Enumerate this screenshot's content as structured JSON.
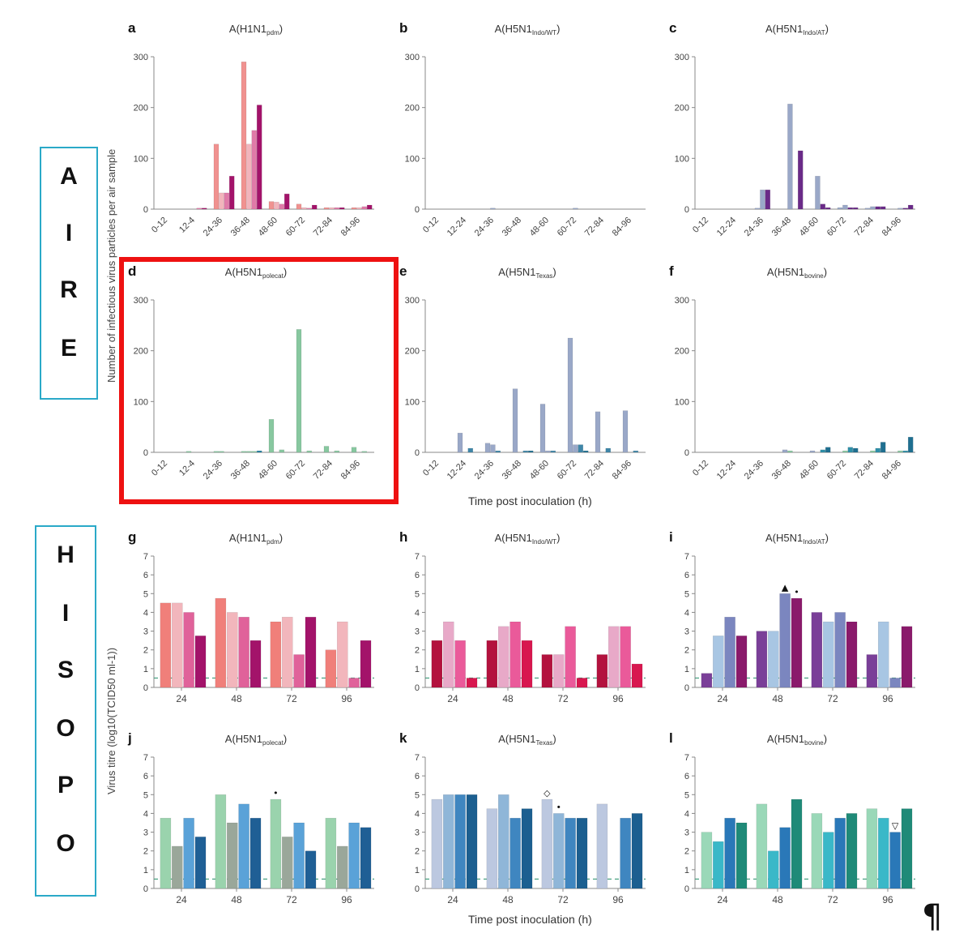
{
  "side_labels": {
    "aire": [
      "A",
      "I",
      "R",
      "E"
    ],
    "hisopo": [
      "H",
      "I",
      "S",
      "O",
      "P",
      "O"
    ]
  },
  "axis_titles": {
    "air_y": "Number of infectious virus particles per air sample",
    "swab_y": "Virus titre (log10(TCID50 ml-1))",
    "air_x": "Time post inoculation (h)",
    "swab_x": "Time post inoculation (h)"
  },
  "end_mark": "¶",
  "colors": {
    "highlight": "#ee1111",
    "side_box": "#2aa9c8",
    "h1n1": [
      "#f07f7a",
      "#f2b6bc",
      "#e0629a",
      "#a3136a"
    ],
    "indo_wt": [
      "#b3123e",
      "#e8a9c8",
      "#ea5a9a",
      "#d8174f"
    ],
    "indo_at": [
      "#7a3f98",
      "#a8c6e3",
      "#7b86bf",
      "#8a1a6b"
    ],
    "polecat": [
      "#9ad3ad",
      "#9aa79a",
      "#5aa2d8",
      "#1f5f95"
    ],
    "texas": [
      "#bcc8e0",
      "#8fb6d8",
      "#3f86c0",
      "#1c5f90"
    ],
    "bovine": [
      "#9ad8b8",
      "#3ab8c8",
      "#2a78b8",
      "#1f8a78"
    ],
    "air_h1n1": [
      "#f09290",
      "#f2b4bc",
      "#e07aa8",
      "#a3136a"
    ],
    "air_polecat": [
      "#88c8a0",
      "#88c8a0",
      "#88c8a0",
      "#1f7fa0"
    ],
    "air_texas": [
      "#9aa8c8",
      "#9aa8c8",
      "#3f86a8",
      "#1f6f90"
    ],
    "air_bovine": [
      "#9aa8c8",
      "#88c8a0",
      "#2f8fa8",
      "#1f6f90"
    ],
    "air_indo_at": [
      "#9aa8c8",
      "#9aa8c8",
      "#6a2a88",
      "#6a2a88"
    ],
    "detection_limit": "#3a9a78"
  },
  "chart_data": [
    {
      "id": "a",
      "panel_letter": "a",
      "type": "bar",
      "title_main": "A(H1N1",
      "title_sub": "pdm",
      "title_end": ")",
      "categories": [
        "0-12",
        "12-4",
        "24-36",
        "36-48",
        "48-60",
        "60-72",
        "72-84",
        "84-96"
      ],
      "y_ticks": [
        "0",
        "100",
        "200",
        "300"
      ],
      "ylim": [
        0,
        300
      ],
      "series": [
        {
          "values": [
            0,
            0,
            128,
            290,
            15,
            10,
            3,
            3
          ]
        },
        {
          "values": [
            0,
            0,
            32,
            128,
            14,
            3,
            3,
            3
          ]
        },
        {
          "values": [
            0,
            2,
            32,
            155,
            10,
            2,
            3,
            5
          ]
        },
        {
          "values": [
            0,
            2,
            65,
            205,
            30,
            8,
            3,
            8
          ]
        }
      ]
    },
    {
      "id": "b",
      "panel_letter": "b",
      "type": "bar",
      "title_main": "A(H5N1",
      "title_sub": "Indo/WT",
      "title_end": ")",
      "categories": [
        "0-12",
        "12-24",
        "24-36",
        "36-48",
        "48-60",
        "60-72",
        "72-84",
        "84-96"
      ],
      "y_ticks": [
        "0",
        "100",
        "200",
        "300"
      ],
      "ylim": [
        0,
        300
      ],
      "series": [
        {
          "values": [
            0,
            0,
            0,
            0,
            0,
            0,
            0,
            0
          ]
        },
        {
          "values": [
            0,
            0,
            2,
            0,
            0,
            2,
            0,
            0
          ]
        },
        {
          "values": [
            0,
            0,
            0,
            0,
            0,
            0,
            0,
            0
          ]
        },
        {
          "values": [
            0,
            0,
            0,
            0,
            0,
            0,
            0,
            0
          ]
        }
      ]
    },
    {
      "id": "c",
      "panel_letter": "c",
      "type": "bar",
      "title_main": "A(H5N1",
      "title_sub": "Indo/AT",
      "title_end": ")",
      "categories": [
        "0-12",
        "12-24",
        "24-36",
        "36-48",
        "48-60",
        "60-72",
        "72-84",
        "84-96"
      ],
      "y_ticks": [
        "0",
        "100",
        "200",
        "300"
      ],
      "ylim": [
        0,
        300
      ],
      "series": [
        {
          "values": [
            0,
            0,
            2,
            0,
            0,
            3,
            2,
            0
          ]
        },
        {
          "values": [
            0,
            0,
            38,
            207,
            65,
            8,
            5,
            2
          ]
        },
        {
          "values": [
            0,
            0,
            38,
            0,
            10,
            3,
            5,
            2
          ]
        },
        {
          "values": [
            0,
            0,
            0,
            115,
            3,
            3,
            5,
            8
          ]
        }
      ]
    },
    {
      "id": "d",
      "panel_letter": "d",
      "type": "bar",
      "title_main": "A(H5N1",
      "title_sub": "polecat",
      "title_end": ")",
      "categories": [
        "0-12",
        "12-4",
        "24-36",
        "36-48",
        "48-60",
        "60-72",
        "72-84",
        "84-96"
      ],
      "y_ticks": [
        "0",
        "100",
        "200",
        "300"
      ],
      "ylim": [
        0,
        300
      ],
      "series": [
        {
          "values": [
            0,
            2,
            2,
            2,
            65,
            242,
            12,
            10
          ]
        },
        {
          "values": [
            0,
            0,
            2,
            2,
            0,
            0,
            0,
            0
          ]
        },
        {
          "values": [
            0,
            0,
            0,
            2,
            5,
            3,
            3,
            2
          ]
        },
        {
          "values": [
            0,
            0,
            0,
            3,
            0,
            0,
            0,
            0
          ]
        }
      ]
    },
    {
      "id": "e",
      "panel_letter": "e",
      "type": "bar",
      "title_main": "A(H5N1",
      "title_sub": "Texas",
      "title_end": ")",
      "categories": [
        "0-12",
        "12-24",
        "24-36",
        "36-48",
        "48-60",
        "60-72",
        "72-84",
        "84-96"
      ],
      "y_ticks": [
        "0",
        "100",
        "200",
        "300"
      ],
      "ylim": [
        0,
        300
      ],
      "series": [
        {
          "values": [
            0,
            38,
            18,
            125,
            95,
            225,
            80,
            82
          ]
        },
        {
          "values": [
            0,
            0,
            15,
            0,
            3,
            15,
            0,
            0
          ]
        },
        {
          "values": [
            0,
            8,
            3,
            3,
            3,
            15,
            8,
            3
          ]
        },
        {
          "values": [
            0,
            0,
            0,
            3,
            0,
            3,
            0,
            0
          ]
        }
      ]
    },
    {
      "id": "f",
      "panel_letter": "f",
      "type": "bar",
      "title_main": "A(H5N1",
      "title_sub": "bovine",
      "title_end": ")",
      "categories": [
        "0-12",
        "12-24",
        "24-36",
        "36-48",
        "48-60",
        "60-72",
        "72-84",
        "84-96"
      ],
      "y_ticks": [
        "0",
        "100",
        "200",
        "300"
      ],
      "ylim": [
        0,
        300
      ],
      "series": [
        {
          "values": [
            0,
            0,
            0,
            5,
            3,
            0,
            0,
            0
          ]
        },
        {
          "values": [
            0,
            0,
            0,
            3,
            0,
            3,
            3,
            3
          ]
        },
        {
          "values": [
            0,
            0,
            0,
            0,
            5,
            10,
            8,
            3
          ]
        },
        {
          "values": [
            0,
            0,
            0,
            0,
            10,
            8,
            20,
            30
          ]
        }
      ]
    },
    {
      "id": "g",
      "panel_letter": "g",
      "type": "bar",
      "title_main": "A(H1N1",
      "title_sub": "pdm",
      "title_end": ")",
      "categories": [
        "24",
        "48",
        "72",
        "96"
      ],
      "y_ticks": [
        "0",
        "1",
        "2",
        "3",
        "4",
        "5",
        "6",
        "7"
      ],
      "ylim": [
        0,
        7
      ],
      "detection_limit": 0.5,
      "series": [
        {
          "values": [
            4.5,
            4.75,
            3.5,
            2.0
          ]
        },
        {
          "values": [
            4.5,
            4.0,
            3.75,
            3.5
          ]
        },
        {
          "values": [
            4.0,
            3.75,
            1.75,
            0.5
          ]
        },
        {
          "values": [
            2.75,
            2.5,
            3.75,
            2.5
          ]
        }
      ]
    },
    {
      "id": "h",
      "panel_letter": "h",
      "type": "bar",
      "title_main": "A(H5N1",
      "title_sub": "Indo/WT",
      "title_end": ")",
      "categories": [
        "24",
        "48",
        "72",
        "96"
      ],
      "y_ticks": [
        "0",
        "1",
        "2",
        "3",
        "4",
        "5",
        "6",
        "7"
      ],
      "ylim": [
        0,
        7
      ],
      "detection_limit": 0.5,
      "series": [
        {
          "values": [
            2.5,
            2.5,
            1.75,
            1.75
          ]
        },
        {
          "values": [
            3.5,
            3.25,
            1.75,
            3.25
          ]
        },
        {
          "values": [
            2.5,
            3.5,
            3.25,
            3.25
          ]
        },
        {
          "values": [
            0.5,
            2.5,
            0.5,
            1.25
          ]
        }
      ]
    },
    {
      "id": "i",
      "panel_letter": "i",
      "type": "bar",
      "title_main": "A(H5N1",
      "title_sub": "Indo/AT",
      "title_end": ")",
      "categories": [
        "24",
        "48",
        "72",
        "96"
      ],
      "y_ticks": [
        "0",
        "1",
        "2",
        "3",
        "4",
        "5",
        "6",
        "7"
      ],
      "ylim": [
        0,
        7
      ],
      "detection_limit": 0.5,
      "markers": [
        {
          "category": 1,
          "series": 2,
          "symbol": "▲"
        },
        {
          "category": 1,
          "series": 3,
          "symbol": "•"
        }
      ],
      "series": [
        {
          "values": [
            0.75,
            3.0,
            4.0,
            1.75
          ]
        },
        {
          "values": [
            2.75,
            3.0,
            3.5,
            3.5
          ]
        },
        {
          "values": [
            3.75,
            5.0,
            4.0,
            0.5
          ]
        },
        {
          "values": [
            2.75,
            4.75,
            3.5,
            3.25
          ]
        }
      ]
    },
    {
      "id": "j",
      "panel_letter": "j",
      "type": "bar",
      "title_main": "A(H5N1",
      "title_sub": "polecat",
      "title_end": ")",
      "categories": [
        "24",
        "48",
        "72",
        "96"
      ],
      "y_ticks": [
        "0",
        "1",
        "2",
        "3",
        "4",
        "5",
        "6",
        "7"
      ],
      "ylim": [
        0,
        7
      ],
      "detection_limit": 0.5,
      "markers": [
        {
          "category": 2,
          "series": 0,
          "symbol": "•"
        }
      ],
      "series": [
        {
          "values": [
            3.75,
            5.0,
            4.75,
            3.75
          ]
        },
        {
          "values": [
            2.25,
            3.5,
            2.75,
            2.25
          ]
        },
        {
          "values": [
            3.75,
            4.5,
            3.5,
            3.5
          ]
        },
        {
          "values": [
            2.75,
            3.75,
            2.0,
            3.25
          ]
        }
      ]
    },
    {
      "id": "k",
      "panel_letter": "k",
      "type": "bar",
      "title_main": "A(H5N1",
      "title_sub": "Texas",
      "title_end": ")",
      "categories": [
        "24",
        "48",
        "72",
        "96"
      ],
      "y_ticks": [
        "0",
        "1",
        "2",
        "3",
        "4",
        "5",
        "6",
        "7"
      ],
      "ylim": [
        0,
        7
      ],
      "detection_limit": 0.5,
      "markers": [
        {
          "category": 2,
          "series": 0,
          "symbol": "◇"
        },
        {
          "category": 2,
          "series": 1,
          "symbol": "•"
        }
      ],
      "series": [
        {
          "values": [
            4.75,
            4.25,
            4.75,
            4.5
          ]
        },
        {
          "values": [
            5.0,
            5.0,
            4.0,
            0.0
          ]
        },
        {
          "values": [
            5.0,
            3.75,
            3.75,
            3.75
          ]
        },
        {
          "values": [
            5.0,
            4.25,
            3.75,
            4.0
          ]
        }
      ]
    },
    {
      "id": "l",
      "panel_letter": "l",
      "type": "bar",
      "title_main": "A(H5N1",
      "title_sub": "bovine",
      "title_end": ")",
      "categories": [
        "24",
        "48",
        "72",
        "96"
      ],
      "y_ticks": [
        "0",
        "1",
        "2",
        "3",
        "4",
        "5",
        "6",
        "7"
      ],
      "ylim": [
        0,
        7
      ],
      "detection_limit": 0.5,
      "markers": [
        {
          "category": 3,
          "series": 2,
          "symbol": "▽"
        }
      ],
      "series": [
        {
          "values": [
            3.0,
            4.5,
            4.0,
            4.25
          ]
        },
        {
          "values": [
            2.5,
            2.0,
            3.0,
            3.75
          ]
        },
        {
          "values": [
            3.75,
            3.25,
            3.75,
            3.0
          ]
        },
        {
          "values": [
            3.5,
            4.75,
            4.0,
            4.25
          ]
        }
      ]
    }
  ]
}
